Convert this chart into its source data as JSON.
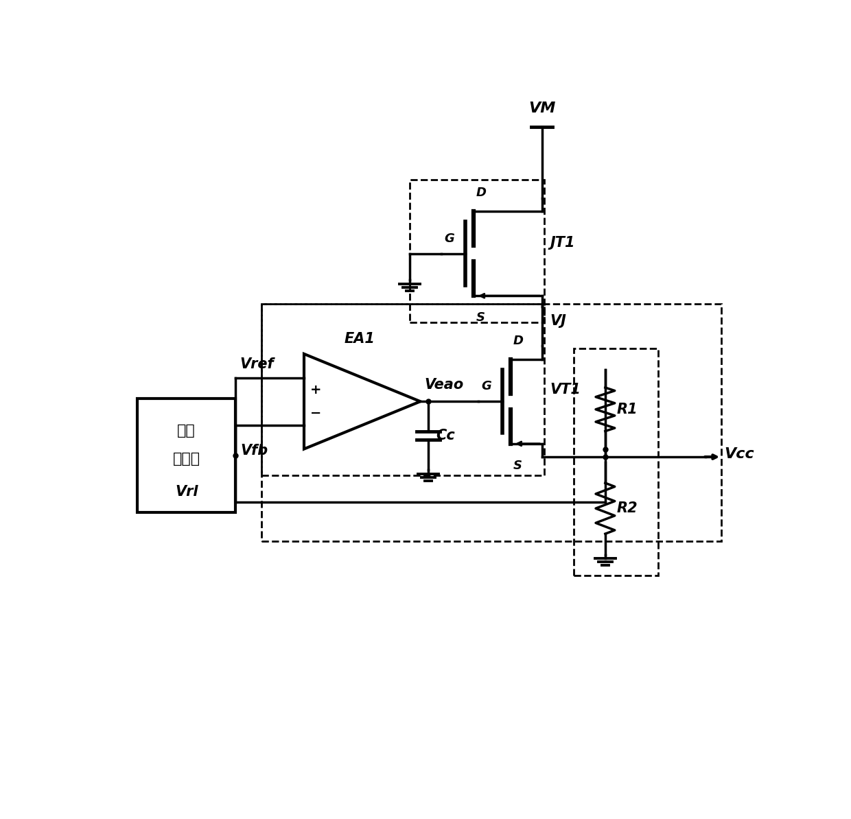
{
  "bg_color": "#ffffff",
  "lc": "#000000",
  "lw": 2.5,
  "dlw": 2.0,
  "fs": 13,
  "fsl": 15,
  "labels": {
    "VM": "VM",
    "VJ": "VJ",
    "VT1": "VT1",
    "JT1": "JT1",
    "EA1": "EA1",
    "Vref": "Vref",
    "Vfb": "Vfb",
    "Veao": "Veao",
    "Cc": "Cc",
    "R1": "R1",
    "R2": "R2",
    "Vcc": "Vcc",
    "Vrl": "Vrl",
    "src1": "基准",
    "src2": "电压源",
    "D": "D",
    "G": "G",
    "S": "S"
  }
}
